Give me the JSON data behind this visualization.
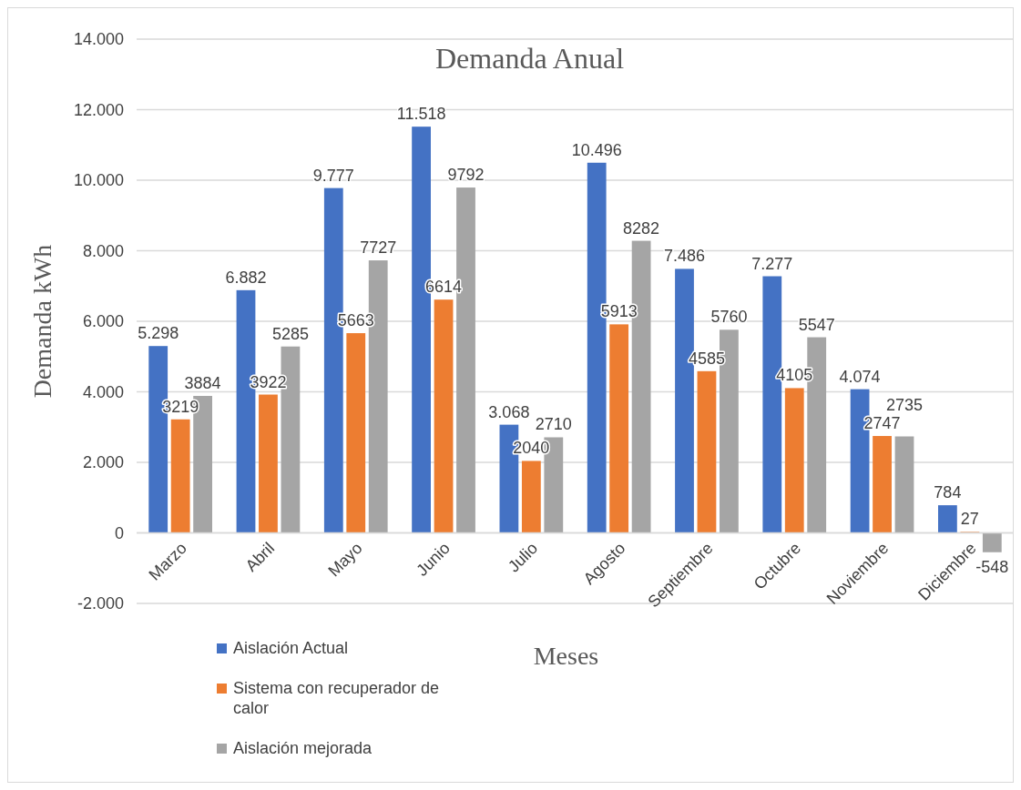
{
  "chart_data": {
    "type": "bar",
    "title": "Demanda Anual",
    "xlabel": "Meses",
    "ylabel": "Demanda kWh",
    "categories": [
      "Marzo",
      "Abril",
      "Mayo",
      "Junio",
      "Julio",
      "Agosto",
      "Septiembre",
      "Octubre",
      "Noviembre",
      "Diciembre"
    ],
    "series": [
      {
        "name": "Aislación Actual",
        "color": "#4472c4",
        "values": [
          5298,
          6882,
          9777,
          11518,
          3068,
          10496,
          7486,
          7277,
          4074,
          784
        ],
        "value_labels": [
          "5.298",
          "6.882",
          "9.777",
          "11.518",
          "3.068",
          "10.496",
          "7.486",
          "7.277",
          "4.074",
          "784"
        ]
      },
      {
        "name": "Sistema con recuperador de calor",
        "color": "#ed7d31",
        "values": [
          3219,
          3922,
          5663,
          6614,
          2040,
          5913,
          4585,
          4105,
          2747,
          27
        ],
        "value_labels": [
          "3219",
          "3922",
          "5663",
          "6614",
          "2040",
          "5913",
          "4585",
          "4105",
          "2747",
          "27"
        ]
      },
      {
        "name": "Aislación mejorada",
        "color": "#a5a5a5",
        "values": [
          3884,
          5285,
          7727,
          9792,
          2710,
          8282,
          5760,
          5547,
          2735,
          -548
        ],
        "value_labels": [
          "3884",
          "5285",
          "7727",
          "9792",
          "2710",
          "8282",
          "5760",
          "5547",
          "2735",
          "-548"
        ]
      }
    ],
    "ylim": [
      -2000,
      14000
    ],
    "yticks": [
      {
        "value": -2000,
        "label": "-2.000"
      },
      0,
      {
        "value": 2000,
        "label": "2.000"
      },
      {
        "value": 4000,
        "label": "4.000"
      },
      {
        "value": 6000,
        "label": "6.000"
      },
      {
        "value": 8000,
        "label": "8.000"
      },
      {
        "value": 10000,
        "label": "10.000"
      },
      {
        "value": 12000,
        "label": "12.000"
      },
      {
        "value": 14000,
        "label": "14.000"
      }
    ],
    "grid": "y",
    "legend": "bottom left"
  }
}
